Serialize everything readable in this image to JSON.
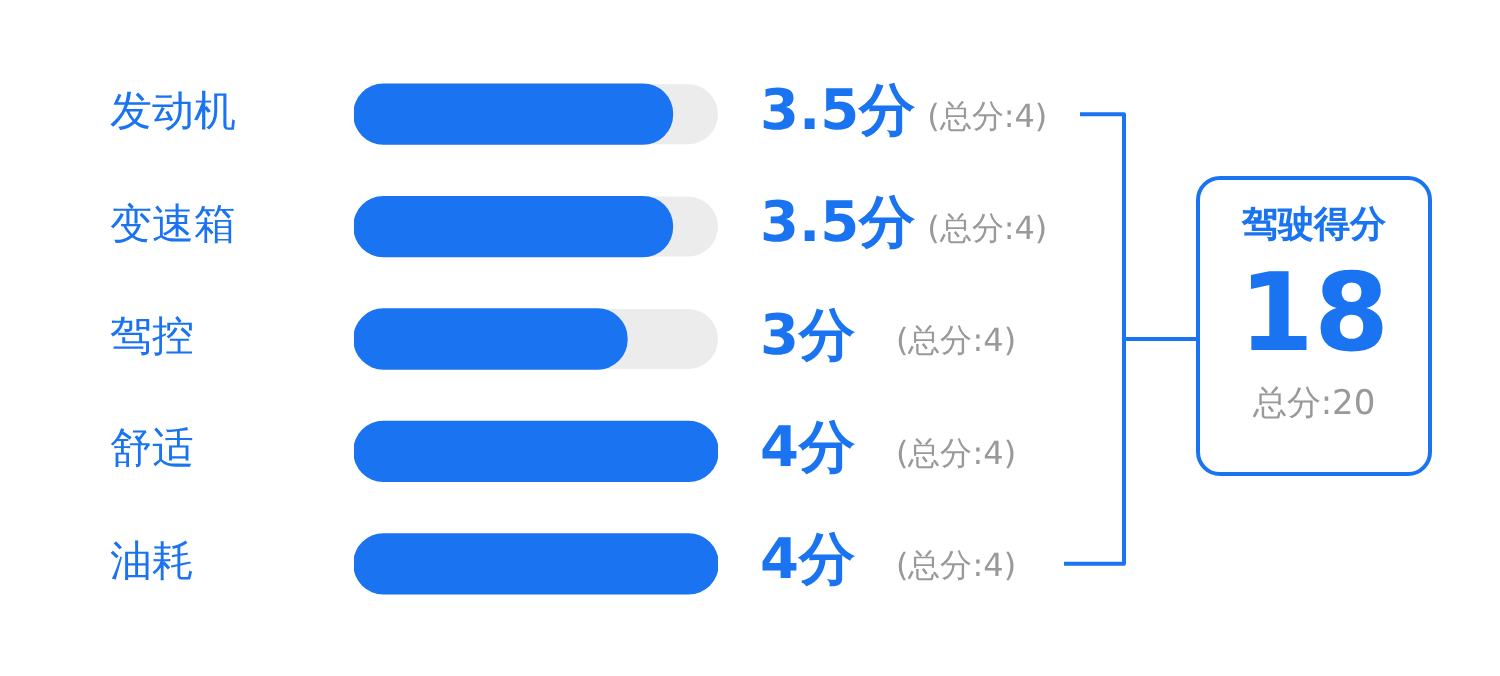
{
  "chart_data": {
    "type": "bar",
    "orientation": "horizontal",
    "categories": [
      "发动机",
      "变速箱",
      "驾控",
      "舒适",
      "油耗"
    ],
    "values": [
      3.5,
      3.5,
      3,
      4,
      4
    ],
    "value_labels": [
      "3.5分",
      "3.5分",
      "3分",
      "4分",
      "4分"
    ],
    "color": "#1a73f0",
    "xlim": [
      0,
      4
    ],
    "tick_labels": "y",
    "legend": false,
    "annotations": [
      "(总分:4)",
      "(总分:4)",
      "(总分:4)",
      "(总分:4)",
      "(总分:4)",
      "驾驶得分",
      "18",
      "总分:20"
    ]
  }
}
